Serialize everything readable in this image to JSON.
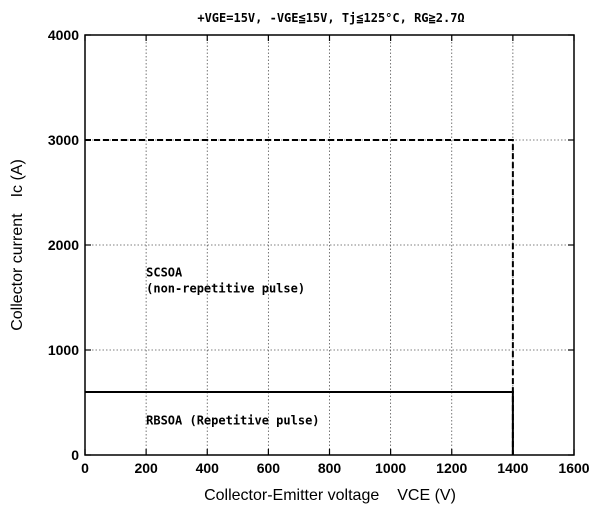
{
  "chart_data": {
    "type": "line",
    "title": "+VGE=15V, -VGE≦15V, Tj≦125°C, RG≧2.7Ω",
    "xlabel": "Collector-Emitter voltage",
    "xlabel_symbol": "VCE (V)",
    "ylabel": "Collector current",
    "ylabel_symbol": "Ic (A)",
    "xlim": [
      0,
      1600
    ],
    "ylim": [
      0,
      4000
    ],
    "x_ticks": [
      0,
      200,
      400,
      600,
      800,
      1000,
      1200,
      1400,
      1600
    ],
    "y_ticks": [
      0,
      1000,
      2000,
      3000,
      4000
    ],
    "grid": true,
    "series": [
      {
        "name": "SCSOA",
        "style": "dashed",
        "points": [
          [
            0,
            3000
          ],
          [
            1400,
            3000
          ],
          [
            1400,
            0
          ]
        ]
      },
      {
        "name": "RBSOA",
        "style": "solid",
        "points": [
          [
            0,
            600
          ],
          [
            1400,
            600
          ],
          [
            1400,
            0
          ]
        ]
      }
    ],
    "annotations": [
      {
        "text": "SCSOA",
        "x": 200,
        "y": 1700
      },
      {
        "text": "(non-repetitive pulse)",
        "x": 200,
        "y": 1550
      },
      {
        "text": "RBSOA (Repetitive pulse)",
        "x": 200,
        "y": 290
      }
    ]
  }
}
